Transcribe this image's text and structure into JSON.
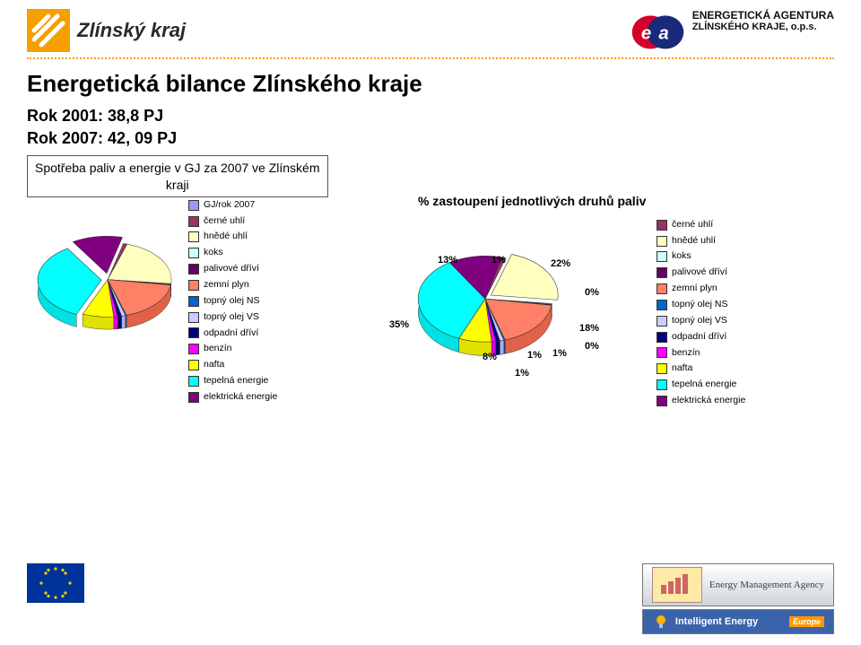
{
  "header": {
    "region_logo_text": "Zlínský kraj",
    "agency_line1": "ENERGETICKÁ AGENTURA",
    "agency_line2": "ZLÍNSKÉHO KRAJE, o.p.s."
  },
  "title": "Energetická bilance Zlínského kraje",
  "rok1": "Rok 2001: ",
  "rok1_val": "38,8 PJ",
  "rok2": "Rok 2007: ",
  "rok2_val": "42, 09 PJ",
  "sub_box_line1": "Spotřeba paliv a energie v GJ za 2007 ve Zlínském",
  "sub_box_line2": "kraji",
  "left_legend_title": "GJ/rok 2007",
  "categories": [
    {
      "key": "cerne_uhli",
      "label": "černé uhlí",
      "color": "#993366",
      "pct": 1
    },
    {
      "key": "hnede_uhli",
      "label": "hnědé uhlí",
      "color": "#ffffc0",
      "pct": 22
    },
    {
      "key": "koks",
      "label": "koks",
      "color": "#ccffff",
      "pct": 0
    },
    {
      "key": "palivove_drivi",
      "label": "palivové dříví",
      "color": "#660066",
      "pct": 0
    },
    {
      "key": "zemni_plyn",
      "label": "zemní plyn",
      "color": "#ff8066",
      "pct": 18
    },
    {
      "key": "topny_olej_ns",
      "label": "topný olej NS",
      "color": "#0066cc",
      "pct": 0
    },
    {
      "key": "topny_olej_vs",
      "label": "topný olej VS",
      "color": "#ccccff",
      "pct": 1
    },
    {
      "key": "odpadni_drivi",
      "label": "odpadní dříví",
      "color": "#000080",
      "pct": 1
    },
    {
      "key": "benzin",
      "label": "benzín",
      "color": "#ff00ff",
      "pct": 1
    },
    {
      "key": "nafta",
      "label": "nafta",
      "color": "#ffff00",
      "pct": 8
    },
    {
      "key": "tepelna_energie",
      "label": "tepelná energie",
      "color": "#00ffff",
      "pct": 35
    },
    {
      "key": "elektricka_energie",
      "label": "elektrická energie",
      "color": "#800080",
      "pct": 13
    }
  ],
  "right_title": "% zastoupení jednotlivých druhů paliv",
  "right_labels": {
    "p35": "35%",
    "p13": "13%",
    "p1a": "1%",
    "p22": "22%",
    "p0a": "0%",
    "p18": "18%",
    "p0b": "0%",
    "p1b": "1%",
    "p1c": "1%",
    "p1d": "1%",
    "p8": "8%"
  },
  "footer": {
    "ema": "Energy Management Agency",
    "iee": "Intelligent Energy",
    "iee_eur": "Europe"
  },
  "chart_style": {
    "type": "pie",
    "font_family": "Arial",
    "label_fontsize_pt": 8,
    "title_fontsize_pt": 11,
    "legend_fontsize_pt": 8,
    "background": "#ffffff",
    "pie_3d": true
  }
}
